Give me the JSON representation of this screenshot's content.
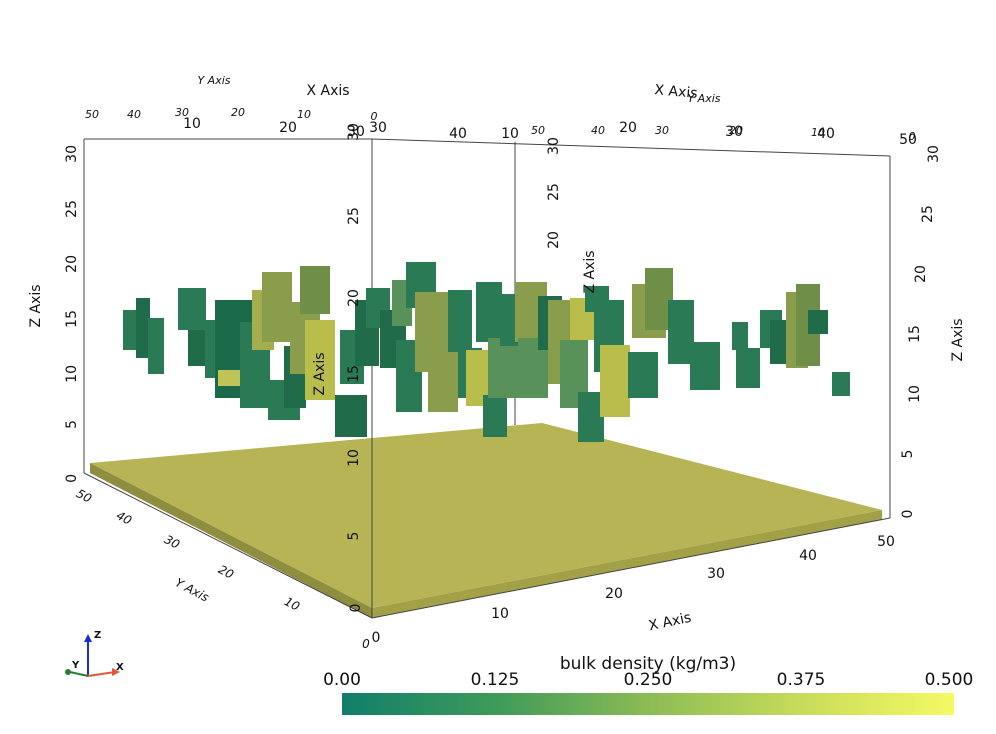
{
  "axes": {
    "x_title": "X Axis",
    "y_title": "Y Axis",
    "z_title": "Z Axis",
    "front_x_ticks": [
      "0",
      "10",
      "20",
      "30",
      "40",
      "50"
    ],
    "front_y_ticks": [
      "0",
      "10",
      "20",
      "30",
      "40",
      "50"
    ],
    "front_z_ticks": [
      "0",
      "5",
      "10",
      "15",
      "20",
      "25",
      "30"
    ],
    "left_z_ticks": [
      "0",
      "5",
      "10",
      "15",
      "20",
      "25",
      "30"
    ],
    "right_z_ticks": [
      "0",
      "5",
      "10",
      "15",
      "20",
      "25",
      "30"
    ],
    "inner_z_ticks": [
      "0",
      "5",
      "10",
      "15",
      "20",
      "25",
      "30"
    ],
    "top_x_ticks_left": [
      "0",
      "10",
      "20",
      "30"
    ],
    "top_x_ticks_right": [
      "0",
      "10",
      "20",
      "30",
      "40",
      "50"
    ],
    "top_y_ticks_left": [
      "50",
      "40",
      "30",
      "20",
      "10",
      "0"
    ],
    "top_y_ticks_right": [
      "50",
      "40",
      "30",
      "20",
      "10",
      "0"
    ]
  },
  "orientation_widget": {
    "x": "X",
    "y": "Y",
    "z": "Z"
  },
  "colorbar": {
    "title": "bulk density (kg/m3)",
    "ticks": [
      "0.00",
      "0.125",
      "0.250",
      "0.375",
      "0.500"
    ],
    "range": [
      0.0,
      0.5
    ],
    "colors": [
      "#107f6a",
      "#3e9a5a",
      "#8cbb55",
      "#c8dc5a",
      "#f5f964"
    ]
  },
  "colors": {
    "ground": "#b0ae4f",
    "dark_green": "#2a7a55",
    "mid_green": "#58915a",
    "olive": "#8a9d4c",
    "yellow_green": "#b9bd4c"
  }
}
